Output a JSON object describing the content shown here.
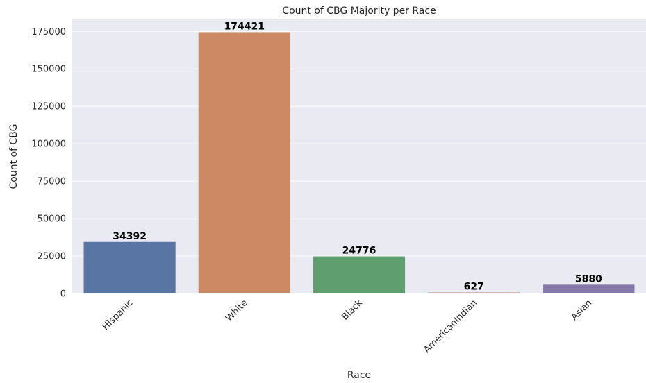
{
  "chart_data": {
    "type": "bar",
    "title": "Count of CBG Majority per Race",
    "xlabel": "Race",
    "ylabel": "Count of CBG",
    "categories": [
      "Hispanic",
      "White",
      "Black",
      "AmericanIndian",
      "Asian"
    ],
    "values": [
      34392,
      174421,
      24776,
      627,
      5880
    ],
    "data_labels": [
      "34392",
      "174421",
      "24776",
      "627",
      "5880"
    ],
    "colors": [
      "#5975a4",
      "#cc8963",
      "#5f9e6e",
      "#b55d60",
      "#857aab"
    ],
    "ylim": [
      0,
      183000
    ],
    "yticks": [
      0,
      25000,
      50000,
      75000,
      100000,
      125000,
      150000,
      175000
    ],
    "ytick_labels": [
      "0",
      "25000",
      "50000",
      "75000",
      "100000",
      "125000",
      "150000",
      "175000"
    ],
    "grid": true,
    "background": "#eaeaf2",
    "grid_color": "#ffffff"
  }
}
